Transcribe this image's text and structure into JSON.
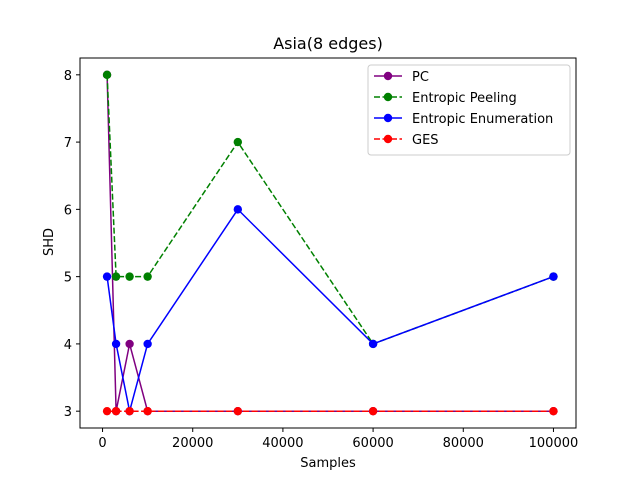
{
  "chart_data": {
    "type": "line",
    "title": "Asia(8 edges)",
    "xlabel": "Samples",
    "ylabel": "SHD",
    "xlim": [
      -5000,
      105000
    ],
    "ylim": [
      2.75,
      8.25
    ],
    "xticks": [
      0,
      20000,
      40000,
      60000,
      80000,
      100000
    ],
    "yticks": [
      3,
      4,
      5,
      6,
      7,
      8
    ],
    "grid": false,
    "legend_position": "top-right",
    "series": [
      {
        "name": "PC",
        "color": "#800080",
        "dash": "solid",
        "x": [
          1000,
          3000,
          6000,
          10000,
          30000,
          60000,
          100000
        ],
        "values": [
          8,
          3,
          4,
          3,
          3,
          3,
          3
        ]
      },
      {
        "name": "Entropic Peeling",
        "color": "#008000",
        "dash": "dashed",
        "x": [
          1000,
          3000,
          6000,
          10000,
          30000,
          60000,
          100000
        ],
        "values": [
          8,
          5,
          5,
          5,
          7,
          4,
          5
        ]
      },
      {
        "name": "Entropic Enumeration",
        "color": "#0000ff",
        "dash": "solid",
        "x": [
          1000,
          3000,
          6000,
          10000,
          30000,
          60000,
          100000
        ],
        "values": [
          5,
          4,
          3,
          4,
          6,
          4,
          5
        ]
      },
      {
        "name": "GES",
        "color": "#ff0000",
        "dash": "dashed",
        "x": [
          1000,
          3000,
          6000,
          10000,
          30000,
          60000,
          100000
        ],
        "values": [
          3,
          3,
          3,
          3,
          3,
          3,
          3
        ]
      }
    ]
  }
}
